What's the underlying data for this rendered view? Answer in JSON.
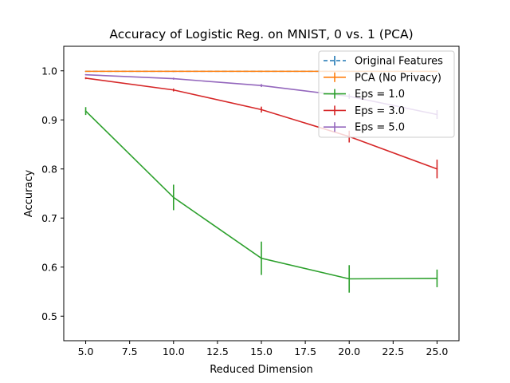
{
  "chart_data": {
    "type": "line",
    "title": "Accuracy of Logistic Reg. on MNIST, 0 vs. 1 (PCA)",
    "xlabel": "Reduced Dimension",
    "ylabel": "Accuracy",
    "xlim": [
      3.75,
      26.25
    ],
    "ylim": [
      0.45,
      1.05
    ],
    "xticks": [
      5.0,
      7.5,
      10.0,
      12.5,
      15.0,
      17.5,
      20.0,
      22.5,
      25.0
    ],
    "xtick_labels": [
      "5.0",
      "7.5",
      "10.0",
      "12.5",
      "15.0",
      "17.5",
      "20.0",
      "22.5",
      "25.0"
    ],
    "yticks": [
      0.5,
      0.6,
      0.7,
      0.8,
      0.9,
      1.0
    ],
    "ytick_labels": [
      "0.5",
      "0.6",
      "0.7",
      "0.8",
      "0.9",
      "1.0"
    ],
    "grid": false,
    "legend_position": "top-right",
    "series": [
      {
        "name": "Original Features",
        "color": "#1f77b4",
        "dashed": true,
        "x": [
          5,
          10,
          15,
          20,
          25
        ],
        "y": [
          0.999,
          0.999,
          0.999,
          0.999,
          0.999
        ],
        "err": [
          0,
          0,
          0,
          0,
          0
        ]
      },
      {
        "name": "PCA (No Privacy)",
        "color": "#ff7f0e",
        "dashed": false,
        "x": [
          5,
          10,
          15,
          20,
          25
        ],
        "y": [
          0.999,
          0.999,
          0.999,
          0.999,
          0.999
        ],
        "err": [
          0,
          0,
          0,
          0,
          0
        ]
      },
      {
        "name": "Eps = 1.0",
        "color": "#2ca02c",
        "dashed": false,
        "x": [
          5,
          10,
          15,
          20,
          25
        ],
        "y": [
          0.918,
          0.742,
          0.618,
          0.576,
          0.577
        ],
        "err": [
          0.008,
          0.026,
          0.034,
          0.028,
          0.018
        ]
      },
      {
        "name": "Eps = 3.0",
        "color": "#d62728",
        "dashed": false,
        "x": [
          5,
          10,
          15,
          20,
          25
        ],
        "y": [
          0.985,
          0.961,
          0.921,
          0.866,
          0.8
        ],
        "err": [
          0.002,
          0.003,
          0.006,
          0.012,
          0.019
        ]
      },
      {
        "name": "Eps = 5.0",
        "color": "#9467bd",
        "dashed": false,
        "x": [
          5,
          10,
          15,
          20,
          25
        ],
        "y": [
          0.992,
          0.984,
          0.97,
          0.948,
          0.911
        ],
        "err": [
          0.001,
          0.002,
          0.003,
          0.005,
          0.009
        ]
      }
    ]
  }
}
